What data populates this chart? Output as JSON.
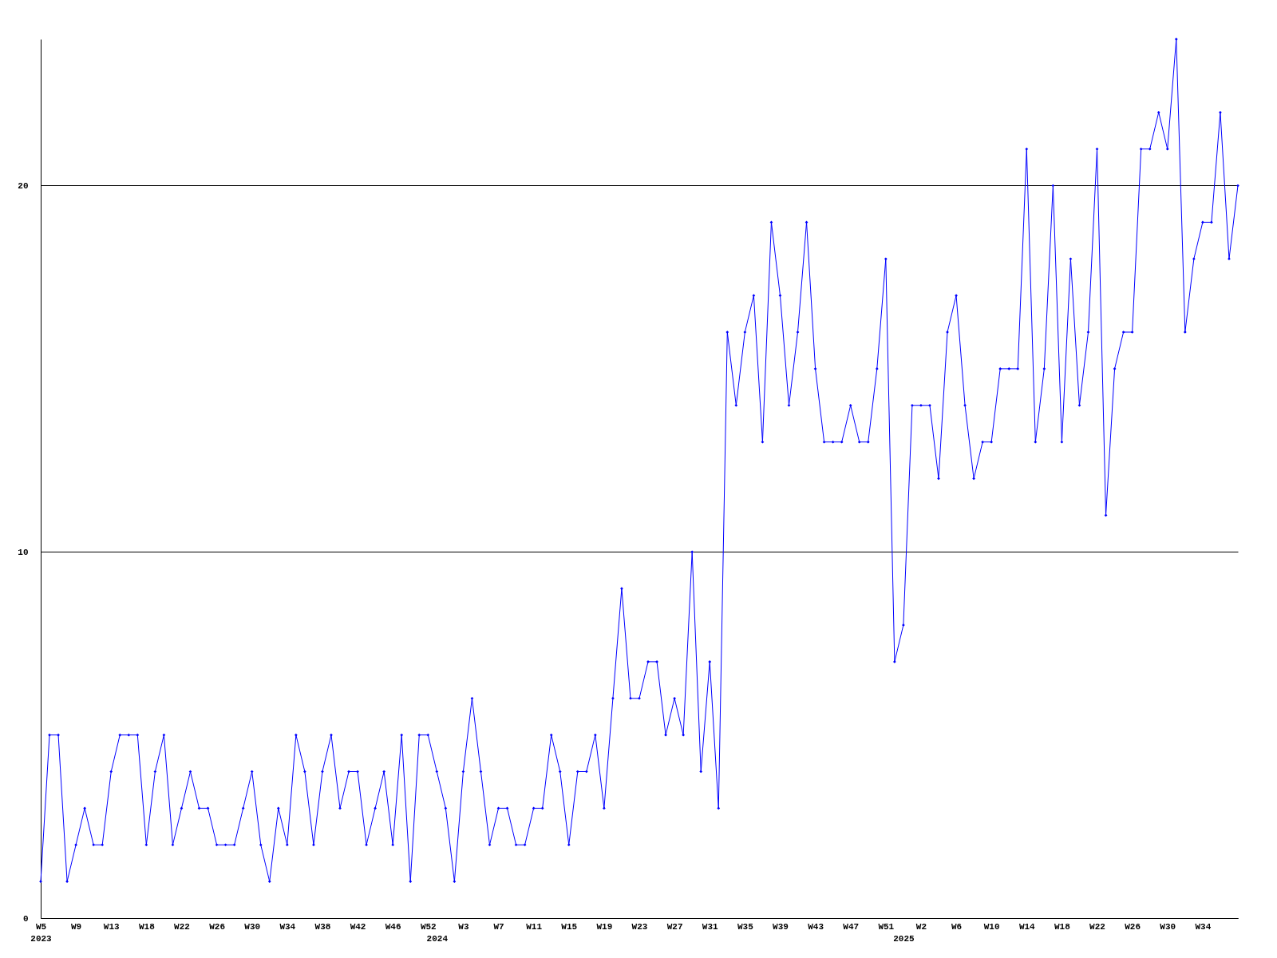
{
  "chart_data": {
    "type": "line",
    "categories": [
      "W5\n2023",
      null,
      null,
      null,
      "W9",
      null,
      null,
      null,
      "W13",
      null,
      null,
      null,
      "W18",
      null,
      null,
      null,
      "W22",
      null,
      null,
      null,
      "W26",
      null,
      null,
      null,
      "W30",
      null,
      null,
      null,
      "W34",
      null,
      null,
      null,
      "W38",
      null,
      null,
      null,
      "W42",
      null,
      null,
      null,
      "W46",
      null,
      null,
      null,
      "W52",
      "\n2024",
      null,
      null,
      "W3",
      null,
      null,
      null,
      "W7",
      null,
      null,
      null,
      "W11",
      null,
      null,
      null,
      "W15",
      null,
      null,
      null,
      "W19",
      null,
      null,
      null,
      "W23",
      null,
      null,
      null,
      "W27",
      null,
      null,
      null,
      "W31",
      null,
      null,
      null,
      "W35",
      null,
      null,
      null,
      "W39",
      null,
      null,
      null,
      "W43",
      null,
      null,
      null,
      "W47",
      null,
      null,
      null,
      "W51",
      null,
      "\n2025",
      null,
      "W2",
      null,
      null,
      null,
      "W6",
      null,
      null,
      null,
      "W10",
      null,
      null,
      null,
      "W14",
      null,
      null,
      null,
      "W18",
      null,
      null,
      null,
      "W22",
      null,
      null,
      null,
      "W26",
      null,
      null,
      null,
      "W30",
      null,
      null,
      null,
      "W34",
      null,
      null,
      null,
      null
    ],
    "values": [
      1,
      5,
      5,
      1,
      2,
      3,
      2,
      2,
      4,
      5,
      5,
      5,
      2,
      4,
      5,
      2,
      3,
      4,
      3,
      3,
      2,
      2,
      2,
      3,
      4,
      2,
      1,
      3,
      2,
      5,
      4,
      2,
      4,
      5,
      3,
      4,
      4,
      2,
      3,
      4,
      2,
      5,
      1,
      5,
      5,
      4,
      3,
      1,
      4,
      6,
      4,
      2,
      3,
      3,
      2,
      2,
      3,
      3,
      5,
      4,
      2,
      4,
      4,
      5,
      3,
      6,
      9,
      6,
      6,
      7,
      7,
      5,
      6,
      5,
      10,
      4,
      7,
      3,
      16,
      14,
      16,
      17,
      13,
      19,
      17,
      14,
      16,
      19,
      15,
      13,
      13,
      13,
      14,
      13,
      13,
      15,
      18,
      7,
      8,
      14,
      14,
      14,
      12,
      16,
      17,
      14,
      12,
      13,
      13,
      15,
      15,
      15,
      21,
      13,
      15,
      20,
      13,
      18,
      14,
      16,
      21,
      11,
      15,
      16,
      16,
      21,
      21,
      22,
      21,
      24,
      16,
      18,
      19,
      19,
      22,
      18,
      20
    ],
    "color": "#0000ff",
    "ylim": [
      0,
      24
    ],
    "yticks": [
      0,
      10,
      20
    ],
    "grid": "y",
    "marker": "diamond",
    "line_style": "solid"
  }
}
